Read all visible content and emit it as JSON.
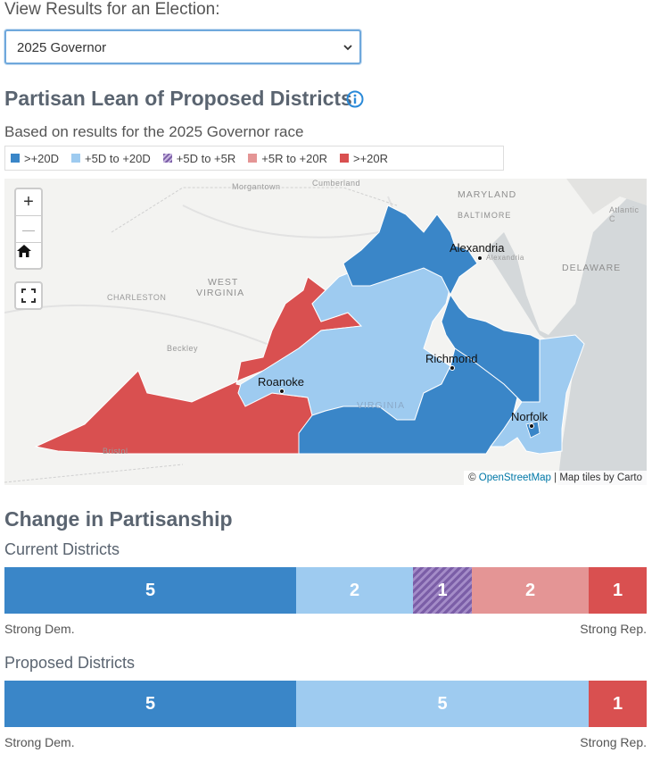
{
  "selector": {
    "label": "View Results for an Election:",
    "value": "2025 Governor"
  },
  "title": "Partisan Lean of Proposed Districts",
  "subtitle": "Based on results for the 2025 Governor race",
  "legend": [
    {
      "label": ">+20D",
      "color": "#3a86c8"
    },
    {
      "label": "+5D to +20D",
      "color": "#9ecbf0"
    },
    {
      "label": "+5D to +5R",
      "color": "#7b5ea7",
      "pattern": "hatch"
    },
    {
      "label": "+5R to +20R",
      "color": "#e49595"
    },
    {
      "label": ">+20R",
      "color": "#d95050"
    }
  ],
  "map": {
    "zoom_in": "+",
    "zoom_out": "—",
    "home_icon": "home-icon",
    "fullscreen_icon": "fullscreen-icon",
    "attribution_prefix": "©",
    "attribution_link": "OpenStreetMap",
    "attribution_suffix": "| Map tiles by Carto",
    "base_labels": {
      "morgantown": "Morgantown",
      "cumberland": "Cumberland",
      "maryland": "MARYLAND",
      "baltimore": "BALTIMORE",
      "atlantic": "Atlantic C",
      "charleston": "CHARLESTON",
      "west": "WEST",
      "virginia_wv": "VIRGINIA",
      "delaware": "DELAWARE",
      "beckley": "Beckley",
      "virginia": "VIRGINIA",
      "bristol": "Bristol",
      "alexandria_small": "Alexandria"
    },
    "cities": {
      "alexandria": "Alexandria",
      "richmond": "Richmond",
      "roanoke": "Roanoke",
      "norfolk": "Norfolk"
    }
  },
  "change": {
    "title": "Change in Partisanship",
    "strong_dem": "Strong Dem.",
    "strong_rep": "Strong Rep.",
    "current": {
      "label": "Current Districts",
      "segments": [
        {
          "value": 5,
          "label": "5",
          "color": "#3a86c8"
        },
        {
          "value": 2,
          "label": "2",
          "color": "#9ecbf0"
        },
        {
          "value": 1,
          "label": "1",
          "color": "#7b5ea7",
          "pattern": "hatch"
        },
        {
          "value": 2,
          "label": "2",
          "color": "#e49595"
        },
        {
          "value": 1,
          "label": "1",
          "color": "#d95050"
        }
      ]
    },
    "proposed": {
      "label": "Proposed Districts",
      "segments": [
        {
          "value": 5,
          "label": "5",
          "color": "#3a86c8"
        },
        {
          "value": 5,
          "label": "5",
          "color": "#9ecbf0"
        },
        {
          "value": 1,
          "label": "1",
          "color": "#d95050"
        }
      ]
    }
  }
}
